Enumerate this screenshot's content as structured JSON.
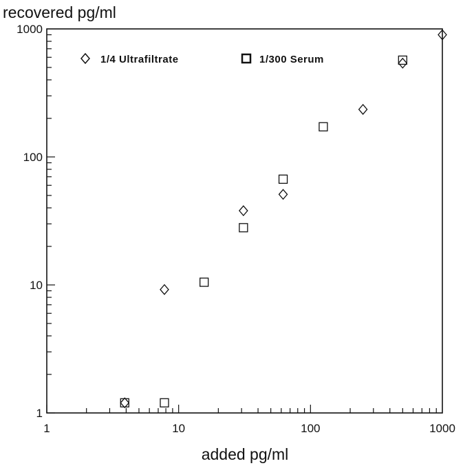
{
  "chart_data": {
    "type": "scatter",
    "title": "",
    "xlabel": "added pg/ml",
    "ylabel": "recovered pg/ml",
    "x_scale": "log",
    "y_scale": "log",
    "xlim": [
      1,
      1000
    ],
    "ylim": [
      1,
      1000
    ],
    "x_tick_labels": [
      "1",
      "10",
      "100",
      "1000"
    ],
    "y_tick_labels": [
      "1",
      "10",
      "100",
      "1000"
    ],
    "grid": false,
    "legend_position": "top",
    "series": [
      {
        "name": "1/4 Ultrafiltrate",
        "marker": "diamond",
        "x": [
          3.9,
          7.8,
          31,
          62,
          250,
          500,
          1000
        ],
        "y": [
          1.2,
          9.2,
          38,
          51,
          235,
          540,
          900
        ]
      },
      {
        "name": "1/300 Serum",
        "marker": "square",
        "x": [
          3.9,
          7.8,
          15.6,
          31,
          62,
          125,
          500
        ],
        "y": [
          1.2,
          1.2,
          10.5,
          28,
          67,
          172,
          570
        ]
      }
    ]
  }
}
